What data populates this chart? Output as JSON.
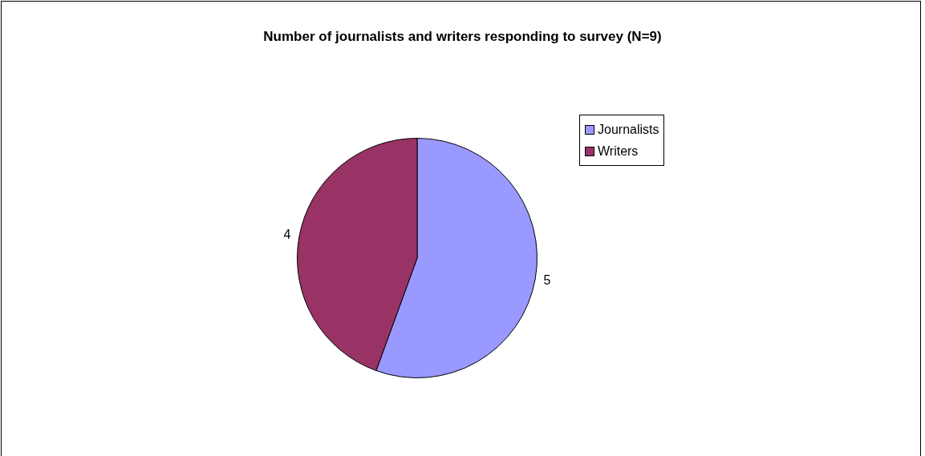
{
  "chart_data": {
    "type": "pie",
    "title": "Number of journalists and writers responding to survey (N=9)",
    "categories": [
      "Journalists",
      "Writers"
    ],
    "values": [
      5,
      4
    ],
    "colors": [
      "#9999ff",
      "#993366"
    ],
    "data_labels": true,
    "legend": "right"
  }
}
